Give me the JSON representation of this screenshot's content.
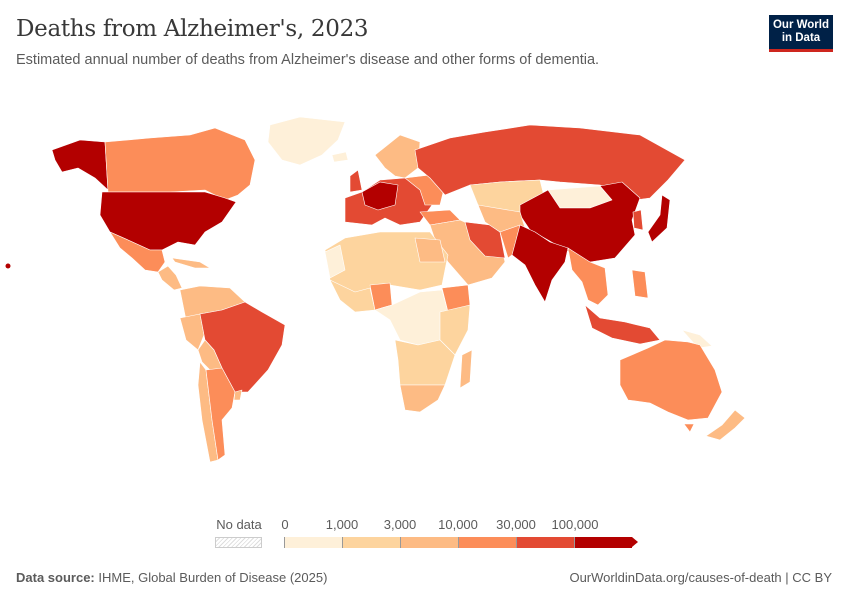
{
  "header": {
    "title": "Deaths from Alzheimer's, 2023",
    "subtitle": "Estimated annual number of deaths from Alzheimer's disease and other forms of dementia.",
    "logo_line1": "Our World",
    "logo_line2": "in Data"
  },
  "legend": {
    "no_data_label": "No data",
    "thresholds": [
      "0",
      "1,000",
      "3,000",
      "10,000",
      "30,000",
      "100,000"
    ],
    "colors": [
      "#fef0d9",
      "#fdd49e",
      "#fdbb84",
      "#fc8d59",
      "#e34a33",
      "#b30000"
    ],
    "no_data_pattern": "hatched-grey"
  },
  "footer": {
    "source_label": "Data source:",
    "source_text": "IHME, Global Burden of Disease (2025)",
    "url_license": "OurWorldinData.org/causes-of-death | CC BY"
  }
}
